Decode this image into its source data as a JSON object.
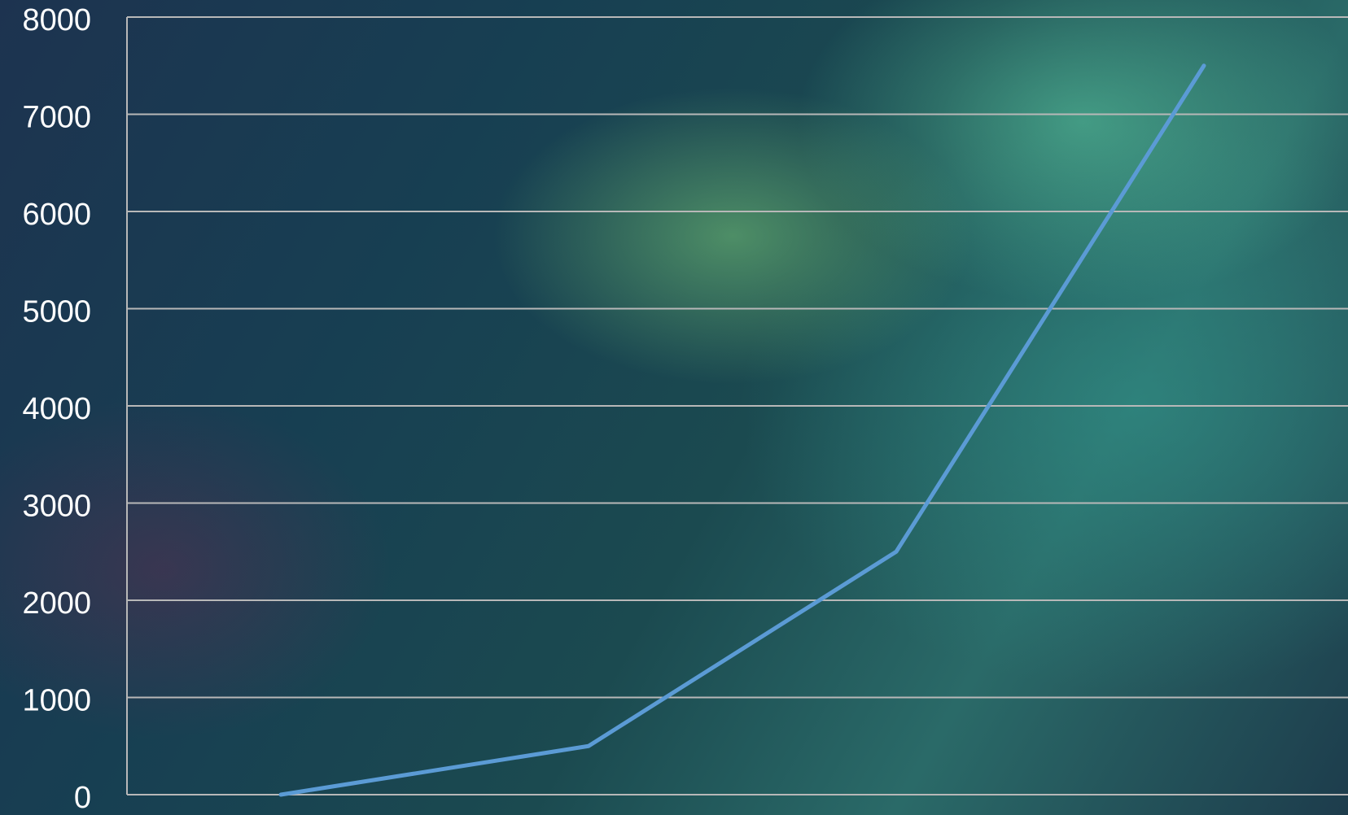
{
  "chart_data": {
    "type": "line",
    "categories": [
      null,
      null,
      null,
      null
    ],
    "series": [
      {
        "name": null,
        "color": "#5b9bd5",
        "values": [
          0,
          500,
          2500,
          7500
        ]
      }
    ],
    "ylim": [
      0,
      8000
    ],
    "yticks": [
      0,
      1000,
      2000,
      3000,
      4000,
      5000,
      6000,
      7000,
      8000
    ],
    "grid": true
  }
}
